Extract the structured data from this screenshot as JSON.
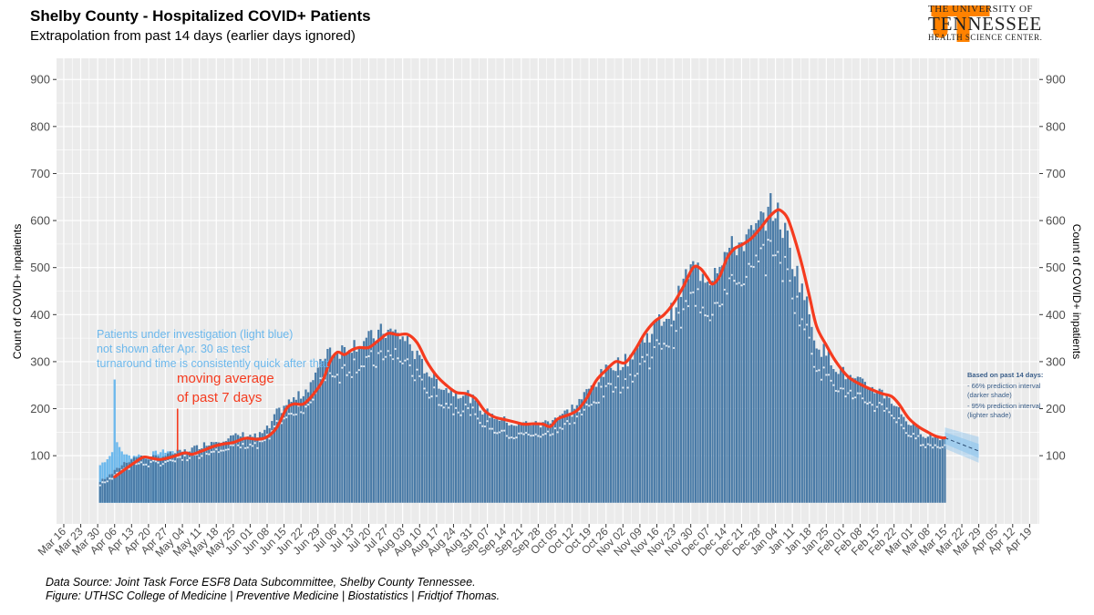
{
  "header": {
    "title": "Shelby County - Hospitalized COVID+ Patients",
    "subtitle": "Extrapolation from past 14 days (earlier days ignored)"
  },
  "logo": {
    "line1": "THE UNIVERSITY OF",
    "line2": "TENNESSEE",
    "line3": "HEALTH SCIENCE CENTER.",
    "brand_color": "#FF8200"
  },
  "footer": {
    "source": "Data Source: Joint Task Force ESF8 Data Subcommittee, Shelby County Tennessee.",
    "credit": "Figure: UTHSC College of Medicine | Preventive Medicine | Biostatistics | Fridtjof Thomas."
  },
  "colors": {
    "panel": "#ebebeb",
    "grid": "#ffffff",
    "bars": "#4a7ba7",
    "pui": "#6cb8ec",
    "moving_average": "#f53b1f",
    "forecast": "#8cc4ee",
    "annotation_blue": "#6cb8ec",
    "annotation_red": "#f53b1f",
    "legend_text": "#3b5f8a"
  },
  "chart_data": {
    "type": "bar",
    "title": "Shelby County - Hospitalized COVID+ Patients",
    "ylabel_left": "Count of COVID+ inpatients",
    "ylabel_right": "Count of COVID+ inpatients",
    "xlabel": "",
    "ylim": [
      -45,
      945
    ],
    "yticks": [
      100,
      200,
      300,
      400,
      500,
      600,
      700,
      800,
      900
    ],
    "x_tick_labels": [
      "Mar 16",
      "Mar 23",
      "Mar 30",
      "Apr 06",
      "Apr 13",
      "Apr 20",
      "Apr 27",
      "May 04",
      "May 11",
      "May 18",
      "May 25",
      "Jun 01",
      "Jun 08",
      "Jun 15",
      "Jun 22",
      "Jun 29",
      "Jul 06",
      "Jul 13",
      "Jul 20",
      "Jul 27",
      "Aug 03",
      "Aug 10",
      "Aug 17",
      "Aug 24",
      "Aug 31",
      "Sep 07",
      "Sep 14",
      "Sep 21",
      "Sep 28",
      "Oct 05",
      "Oct 12",
      "Oct 19",
      "Oct 26",
      "Nov 02",
      "Nov 09",
      "Nov 16",
      "Nov 23",
      "Nov 30",
      "Dec 07",
      "Dec 14",
      "Dec 21",
      "Dec 28",
      "Jan 04",
      "Jan 11",
      "Jan 18",
      "Jan 25",
      "Feb 01",
      "Feb 08",
      "Feb 15",
      "Feb 22",
      "Mar 01",
      "Mar 08",
      "Mar 15",
      "Mar 22",
      "Mar 29",
      "Apr 05",
      "Apr 12",
      "Apr 19"
    ],
    "x_tick_day_index": [
      0,
      7,
      14,
      21,
      28,
      35,
      42,
      49,
      56,
      63,
      70,
      77,
      84,
      91,
      98,
      105,
      112,
      119,
      126,
      133,
      140,
      147,
      154,
      161,
      168,
      175,
      182,
      189,
      196,
      203,
      210,
      217,
      224,
      231,
      238,
      245,
      252,
      259,
      266,
      273,
      280,
      287,
      294,
      301,
      308,
      315,
      322,
      329,
      336,
      343,
      350,
      357,
      364,
      371,
      378,
      385,
      392,
      399
    ],
    "x_range_days": [
      -3,
      403
    ],
    "bar_series_day_range": [
      15,
      364
    ],
    "bar_keypoints_day_value": [
      [
        15,
        45
      ],
      [
        20,
        62
      ],
      [
        25,
        85
      ],
      [
        30,
        98
      ],
      [
        35,
        95
      ],
      [
        40,
        98
      ],
      [
        45,
        105
      ],
      [
        50,
        110
      ],
      [
        55,
        118
      ],
      [
        60,
        128
      ],
      [
        65,
        135
      ],
      [
        70,
        140
      ],
      [
        75,
        145
      ],
      [
        80,
        140
      ],
      [
        85,
        160
      ],
      [
        88,
        190
      ],
      [
        92,
        210
      ],
      [
        97,
        225
      ],
      [
        100,
        240
      ],
      [
        105,
        280
      ],
      [
        109,
        330
      ],
      [
        113,
        320
      ],
      [
        118,
        335
      ],
      [
        122,
        340
      ],
      [
        127,
        350
      ],
      [
        132,
        365
      ],
      [
        137,
        360
      ],
      [
        142,
        345
      ],
      [
        147,
        300
      ],
      [
        152,
        270
      ],
      [
        157,
        245
      ],
      [
        162,
        235
      ],
      [
        167,
        230
      ],
      [
        172,
        200
      ],
      [
        177,
        185
      ],
      [
        182,
        175
      ],
      [
        187,
        165
      ],
      [
        192,
        170
      ],
      [
        197,
        165
      ],
      [
        202,
        180
      ],
      [
        207,
        190
      ],
      [
        212,
        210
      ],
      [
        217,
        240
      ],
      [
        222,
        270
      ],
      [
        227,
        295
      ],
      [
        232,
        300
      ],
      [
        237,
        330
      ],
      [
        242,
        360
      ],
      [
        247,
        390
      ],
      [
        252,
        410
      ],
      [
        257,
        480
      ],
      [
        260,
        500
      ],
      [
        264,
        490
      ],
      [
        267,
        480
      ],
      [
        271,
        520
      ],
      [
        276,
        540
      ],
      [
        280,
        555
      ],
      [
        285,
        570
      ],
      [
        288,
        595
      ],
      [
        291,
        620
      ],
      [
        293,
        630
      ],
      [
        296,
        600
      ],
      [
        299,
        560
      ],
      [
        302,
        500
      ],
      [
        305,
        460
      ],
      [
        308,
        400
      ],
      [
        311,
        340
      ],
      [
        316,
        310
      ],
      [
        321,
        280
      ],
      [
        326,
        260
      ],
      [
        331,
        250
      ],
      [
        336,
        240
      ],
      [
        341,
        225
      ],
      [
        346,
        190
      ],
      [
        351,
        160
      ],
      [
        356,
        145
      ],
      [
        360,
        140
      ],
      [
        364,
        140
      ]
    ],
    "pui_series_day_range": [
      15,
      45
    ],
    "pui_keypoints_day_value": [
      [
        15,
        80
      ],
      [
        17,
        90
      ],
      [
        19,
        100
      ],
      [
        21,
        115
      ],
      [
        22,
        125
      ],
      [
        24,
        110
      ],
      [
        26,
        100
      ],
      [
        28,
        98
      ],
      [
        30,
        102
      ],
      [
        32,
        100
      ],
      [
        34,
        98
      ],
      [
        37,
        105
      ],
      [
        40,
        108
      ],
      [
        43,
        110
      ],
      [
        45,
        108
      ]
    ],
    "pui_spike_day": 21,
    "pui_spike_value": 262,
    "moving_average_keypoints_day_value": [
      [
        21,
        55
      ],
      [
        25,
        70
      ],
      [
        30,
        88
      ],
      [
        33,
        97
      ],
      [
        36,
        95
      ],
      [
        40,
        92
      ],
      [
        45,
        98
      ],
      [
        50,
        106
      ],
      [
        53,
        103
      ],
      [
        57,
        110
      ],
      [
        62,
        120
      ],
      [
        66,
        125
      ],
      [
        70,
        128
      ],
      [
        75,
        137
      ],
      [
        80,
        135
      ],
      [
        84,
        140
      ],
      [
        88,
        160
      ],
      [
        92,
        200
      ],
      [
        95,
        210
      ],
      [
        99,
        210
      ],
      [
        103,
        230
      ],
      [
        107,
        260
      ],
      [
        110,
        300
      ],
      [
        113,
        320
      ],
      [
        116,
        315
      ],
      [
        119,
        325
      ],
      [
        122,
        330
      ],
      [
        126,
        330
      ],
      [
        130,
        345
      ],
      [
        134,
        360
      ],
      [
        138,
        357
      ],
      [
        142,
        358
      ],
      [
        146,
        340
      ],
      [
        150,
        300
      ],
      [
        154,
        270
      ],
      [
        158,
        250
      ],
      [
        162,
        235
      ],
      [
        166,
        232
      ],
      [
        170,
        222
      ],
      [
        174,
        195
      ],
      [
        178,
        182
      ],
      [
        182,
        177
      ],
      [
        186,
        172
      ],
      [
        190,
        167
      ],
      [
        194,
        168
      ],
      [
        198,
        167
      ],
      [
        201,
        162
      ],
      [
        204,
        178
      ],
      [
        208,
        186
      ],
      [
        212,
        196
      ],
      [
        216,
        222
      ],
      [
        220,
        260
      ],
      [
        224,
        282
      ],
      [
        228,
        300
      ],
      [
        232,
        298
      ],
      [
        236,
        325
      ],
      [
        240,
        360
      ],
      [
        244,
        385
      ],
      [
        248,
        400
      ],
      [
        252,
        425
      ],
      [
        256,
        460
      ],
      [
        260,
        500
      ],
      [
        263,
        498
      ],
      [
        266,
        478
      ],
      [
        268,
        465
      ],
      [
        271,
        482
      ],
      [
        274,
        520
      ],
      [
        277,
        540
      ],
      [
        280,
        548
      ],
      [
        284,
        562
      ],
      [
        288,
        585
      ],
      [
        291,
        605
      ],
      [
        294,
        620
      ],
      [
        296,
        622
      ],
      [
        299,
        605
      ],
      [
        302,
        560
      ],
      [
        305,
        505
      ],
      [
        308,
        440
      ],
      [
        311,
        375
      ],
      [
        315,
        335
      ],
      [
        319,
        300
      ],
      [
        324,
        268
      ],
      [
        329,
        252
      ],
      [
        334,
        240
      ],
      [
        338,
        232
      ],
      [
        342,
        226
      ],
      [
        345,
        210
      ],
      [
        349,
        180
      ],
      [
        353,
        162
      ],
      [
        357,
        150
      ],
      [
        360,
        142
      ],
      [
        363,
        138
      ],
      [
        364,
        138
      ]
    ],
    "forecast": {
      "day_range": [
        364,
        378
      ],
      "center": [
        138,
        110
      ],
      "inner_band_66": [
        [
          364,
          125,
          150
        ],
        [
          378,
          95,
          125
        ]
      ],
      "outer_band_95": [
        [
          364,
          115,
          160
        ],
        [
          378,
          85,
          140
        ]
      ]
    },
    "annotations": {
      "pui_note": [
        "Patients under investigation (light blue)",
        "not shown after Apr. 30 as test",
        "turnaround time is consistently quick after that"
      ],
      "moving_average_note": [
        "moving average",
        "of past 7 days"
      ],
      "moving_average_pointer": {
        "day": 47,
        "value_top": 200,
        "value_bottom": 110
      },
      "forecast_legend": [
        "Based on past 14 days:",
        "- 66% prediction interval",
        "(darker shade)",
        "- 95% prediction interval",
        "(lighter shade)"
      ]
    }
  }
}
